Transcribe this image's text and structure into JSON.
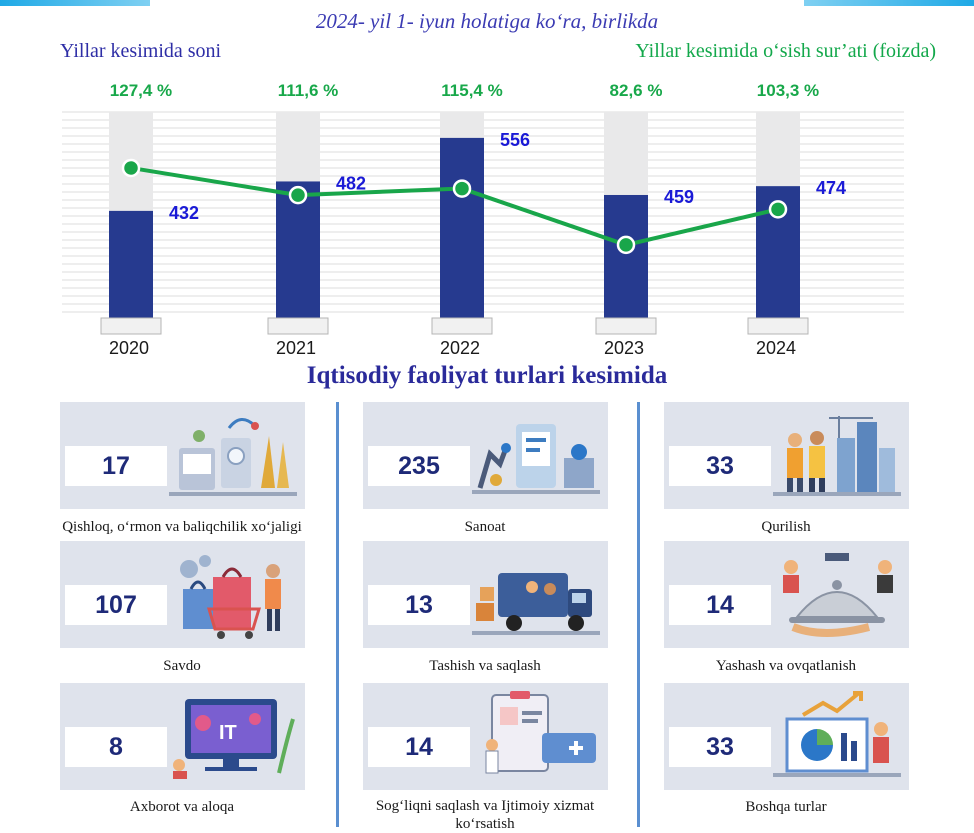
{
  "header": {
    "subtitle": "2024- yil 1- iyun holatiga ko‘ra, birlikda",
    "left_label": "Yillar kesimida soni",
    "right_label": "Yillar kesimida o‘sish sur’ati (foizda)"
  },
  "colors": {
    "bar": "#263a8f",
    "bar_shadow": "#e9e9ea",
    "line": "#19a64a",
    "bar_value_text": "#1a1ad6",
    "growth_text": "#18a84a",
    "title_text": "#2a2a9a",
    "card_bg": "#dfe3ec",
    "separator": "#5a8fd0"
  },
  "chart_data": {
    "type": "bar",
    "categories": [
      "2020",
      "2021",
      "2022",
      "2023",
      "2024"
    ],
    "series": [
      {
        "values": [
          432,
          482,
          556,
          459,
          474
        ]
      },
      {
        "values": [
          127.4,
          111.6,
          115.4,
          82.6,
          103.3
        ]
      }
    ],
    "bar_value_labels": [
      "432",
      "482",
      "556",
      "459",
      "474"
    ],
    "growth_labels": [
      "127,4 %",
      "111,6 %",
      "115,4 %",
      "82,6 %",
      "103,3 %"
    ],
    "bar_ylim": [
      250,
      600
    ],
    "line_ylim": [
      40,
      160
    ],
    "grid": true
  },
  "section_title": "Iqtisodiy faoliyat turlari kesimida",
  "sectors": [
    {
      "value": "17",
      "label": "Qishloq, o‘rmon va baliqchilik xo‘jaligi",
      "icon": "agriculture-icon"
    },
    {
      "value": "235",
      "label": "Sanoat",
      "icon": "factory-icon"
    },
    {
      "value": "33",
      "label": "Qurilish",
      "icon": "construction-icon"
    },
    {
      "value": "107",
      "label": "Savdo",
      "icon": "shopping-icon"
    },
    {
      "value": "13",
      "label": "Tashish va saqlash",
      "icon": "truck-icon"
    },
    {
      "value": "14",
      "label": "Yashash va ovqatlanish",
      "icon": "cloche-icon"
    },
    {
      "value": "8",
      "label": "Axborot va aloqa",
      "icon": "it-icon"
    },
    {
      "value": "14",
      "label": "Sog‘liqni saqlash va Ijtimoiy xizmat ko‘rsatish",
      "icon": "medical-icon"
    },
    {
      "value": "33",
      "label": "Boshqa turlar",
      "icon": "analytics-icon"
    }
  ]
}
